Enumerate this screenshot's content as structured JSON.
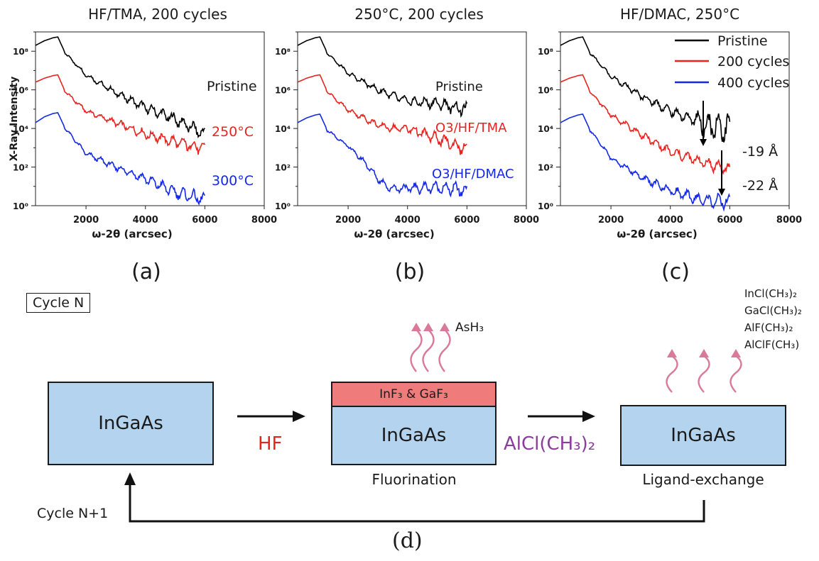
{
  "chart_data": [
    {
      "type": "line",
      "title": "HF/TMA, 200 cycles",
      "xlabel": "ω-2θ (arcsec)",
      "ylabel": "X-Ray Intensity",
      "yscale": "log",
      "xlim": [
        300,
        8000
      ],
      "ylim": [
        1,
        1000000000.0
      ],
      "xticks": [
        "2000",
        "4000",
        "6000",
        "8000"
      ],
      "yticks": [
        "10⁰",
        "10²",
        "10⁴",
        "10⁶",
        "10⁸"
      ],
      "panel_label": "(a)",
      "series": [
        {
          "name": "Pristine",
          "color": "#000000",
          "x": [
            300,
            600,
            900,
            1050,
            1300,
            2000,
            3000,
            4000,
            5000,
            6000
          ],
          "y": [
            200000000.0,
            350000000.0,
            500000000.0,
            550000000.0,
            80000000.0,
            6000000.0,
            700000.0,
            120000.0,
            30000.0,
            5000.0
          ]
        },
        {
          "name": "250°C",
          "color": "#e8241f",
          "x": [
            300,
            600,
            900,
            1050,
            1300,
            2000,
            3000,
            4000,
            5000,
            6000
          ],
          "y": [
            2500000.0,
            4000000.0,
            5500000.0,
            6000000.0,
            800000.0,
            80000.0,
            20000.0,
            5000.0,
            2000.0,
            900.0
          ]
        },
        {
          "name": "300°C",
          "color": "#1428e8",
          "x": [
            300,
            600,
            900,
            1050,
            1300,
            2000,
            3000,
            4000,
            5000,
            6000
          ],
          "y": [
            20000.0,
            40000.0,
            60000.0,
            65000.0,
            10000.0,
            500.0,
            100.0,
            25.0,
            5,
            2
          ]
        }
      ],
      "labels": [
        "Pristine",
        "250°C",
        "300°C"
      ]
    },
    {
      "type": "line",
      "title": "250°C, 200 cycles",
      "xlabel": "ω-2θ (arcsec)",
      "ylabel": "",
      "yscale": "log",
      "xlim": [
        300,
        8000
      ],
      "ylim": [
        1,
        1000000000.0
      ],
      "xticks": [
        "2000",
        "4000",
        "6000",
        "8000"
      ],
      "yticks": [
        "10⁰",
        "10²",
        "10⁴",
        "10⁶",
        "10⁸"
      ],
      "panel_label": "(b)",
      "series": [
        {
          "name": "Pristine",
          "color": "#000000",
          "x": [
            300,
            600,
            900,
            1050,
            1300,
            2000,
            3000,
            4000,
            5000,
            6000
          ],
          "y": [
            200000000.0,
            350000000.0,
            500000000.0,
            550000000.0,
            80000000.0,
            7000000.0,
            1000000.0,
            250000.0,
            200000.0,
            90000.0
          ]
        },
        {
          "name": "O3/HF/TMA",
          "color": "#e8241f",
          "x": [
            300,
            600,
            900,
            1050,
            1300,
            2000,
            3000,
            3500,
            4000,
            5000,
            6000
          ],
          "y": [
            2500000.0,
            4000000.0,
            5500000.0,
            6000000.0,
            800000.0,
            90000.0,
            15000.0,
            10000.0,
            10000.0,
            3000.0,
            800.0
          ]
        },
        {
          "name": "O3/HF/DMAC",
          "color": "#1428e8",
          "x": [
            300,
            600,
            900,
            1050,
            1300,
            2000,
            2600,
            3000,
            3400,
            4000,
            5000,
            6000
          ],
          "y": [
            20000.0,
            35000.0,
            50000.0,
            55000.0,
            8000.0,
            1200.0,
            150.0,
            25.0,
            8,
            8,
            9,
            6
          ]
        }
      ],
      "labels": [
        "Pristine",
        "O3/HF/TMA",
        "O3/HF/DMAC"
      ]
    },
    {
      "type": "line",
      "title": "HF/DMAC, 250°C",
      "xlabel": "ω-2θ (arcsec)",
      "ylabel": "",
      "yscale": "log",
      "xlim": [
        300,
        8000
      ],
      "ylim": [
        1,
        1000000000.0
      ],
      "xticks": [
        "2000",
        "4000",
        "6000",
        "8000"
      ],
      "yticks": [
        "10⁰",
        "10²",
        "10⁴",
        "10⁶",
        "10⁸"
      ],
      "panel_label": "(c)",
      "legend": {
        "position": "top-right",
        "entries": [
          "Pristine",
          "200 cycles",
          "400 cycles"
        ]
      },
      "series": [
        {
          "name": "Pristine",
          "color": "#000000",
          "x": [
            300,
            600,
            900,
            1050,
            1300,
            2000,
            3000,
            4000,
            5000,
            6000
          ],
          "y": [
            200000000.0,
            350000000.0,
            500000000.0,
            550000000.0,
            80000000.0,
            5000000.0,
            500000.0,
            80000.0,
            20000.0,
            10000.0
          ]
        },
        {
          "name": "200 cycles",
          "color": "#e8241f",
          "x": [
            300,
            600,
            900,
            1050,
            1300,
            2000,
            3000,
            4000,
            5000,
            6000
          ],
          "y": [
            2500000.0,
            4000000.0,
            5500000.0,
            6000000.0,
            800000.0,
            50000.0,
            5000.0,
            600.0,
            200.0,
            70.0
          ]
        },
        {
          "name": "400 cycles",
          "color": "#1428e8",
          "x": [
            300,
            600,
            900,
            1050,
            1300,
            2000,
            3000,
            4000,
            5000,
            6000
          ],
          "y": [
            20000.0,
            35000.0,
            50000.0,
            55000.0,
            8000.0,
            300.0,
            30.0,
            6,
            2,
            1.5
          ]
        }
      ],
      "annotations": [
        {
          "text": "-19 Å",
          "arrow_x": 4500,
          "color": "#000000"
        },
        {
          "text": "-22 Å",
          "arrow_x": 5150,
          "color": "#000000"
        }
      ]
    }
  ],
  "diagram": {
    "panel_label": "(d)",
    "cycle_label": "Cycle N",
    "cycle_next_label": "Cycle N+1",
    "box_label_1": "InGaAs",
    "box_label_2": "InGaAs",
    "box_label_3": "InGaAs",
    "fluoride_layer": "InF₃ & GaF₃",
    "step1_reagent": "HF",
    "step2_reagent": "AlCl(CH₃)₂",
    "step1_name": "Fluorination",
    "step2_name": "Ligand-exchange",
    "step1_product": "AsH₃",
    "step2_products": [
      "InCl(CH₃)₂",
      "GaCl(CH₃)₂",
      "AlF(CH₃)₂",
      "AlClF(CH₃)"
    ],
    "colors": {
      "box": "#b4d3ee",
      "fluoride": "#ef7b7b",
      "hf": "#e8241f",
      "dmac": "#8a3d9c",
      "squiggle": "#d97a9a"
    }
  }
}
